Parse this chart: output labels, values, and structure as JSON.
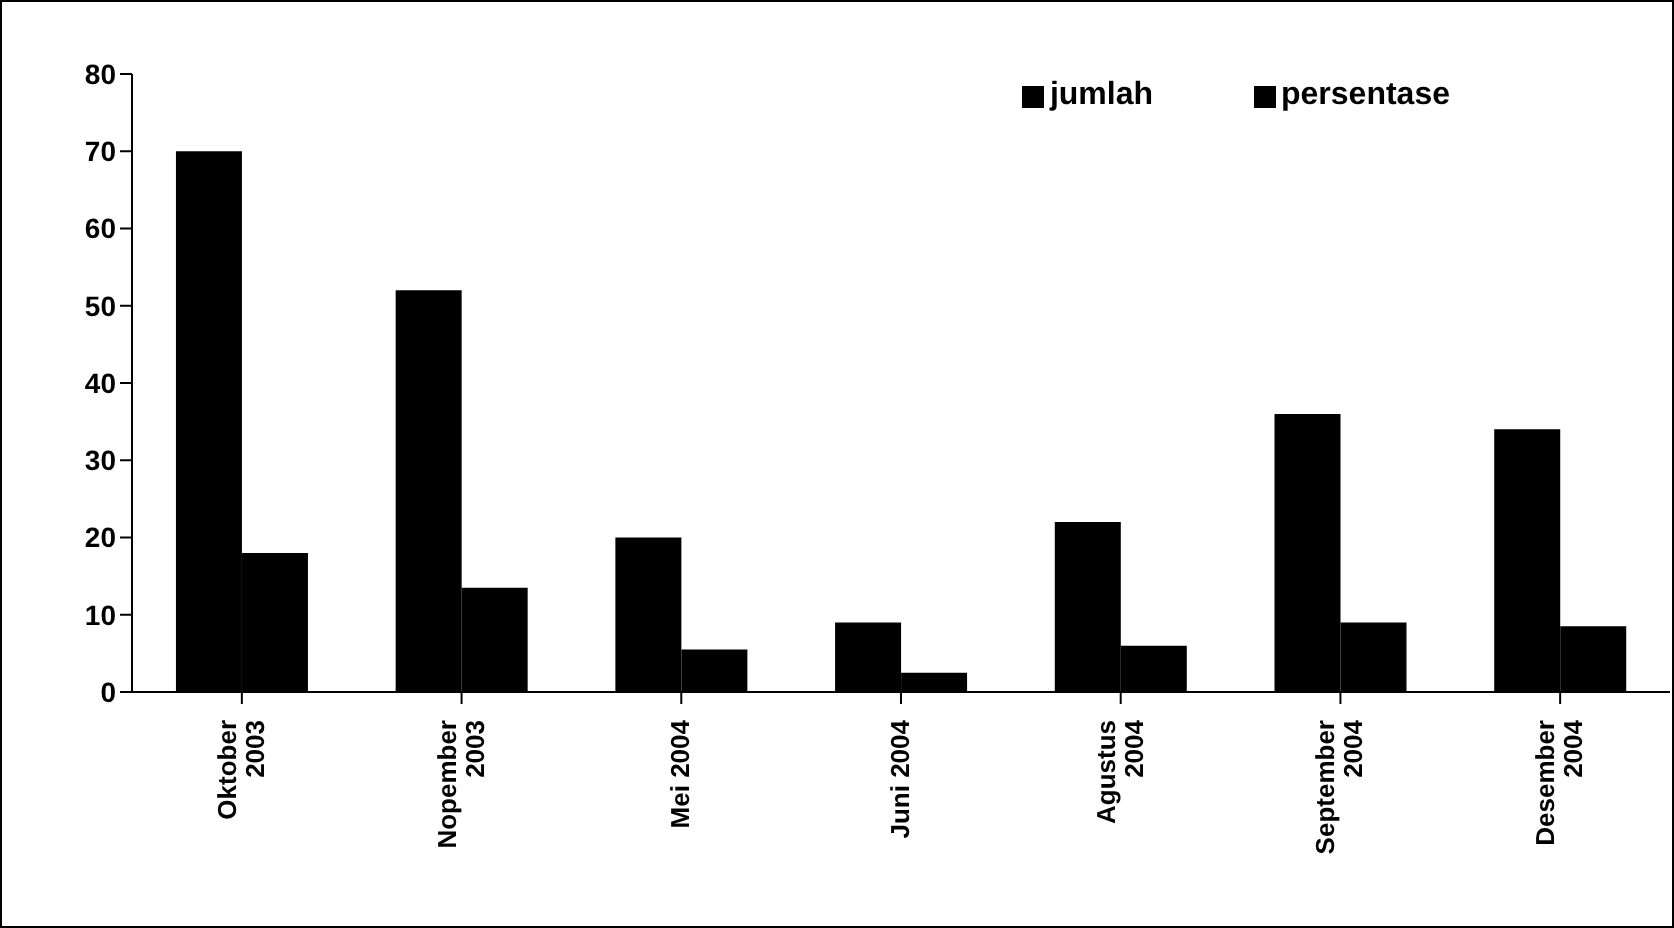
{
  "chart_data": {
    "type": "bar",
    "categories": [
      "Oktober 2003",
      "Nopember 2003",
      "Mei 2004",
      "Juni 2004",
      "Agustus 2004",
      "September 2004",
      "Desember 2004"
    ],
    "series": [
      {
        "name": "jumlah",
        "color": "#000000",
        "values": [
          70,
          52,
          20,
          9,
          22,
          36,
          34
        ]
      },
      {
        "name": "persentase",
        "color": "#000000",
        "values": [
          18,
          13.5,
          5.5,
          2.5,
          6,
          9,
          8.5
        ]
      }
    ],
    "ylim": [
      0,
      80
    ],
    "yticks": [
      0,
      10,
      20,
      30,
      40,
      50,
      60,
      70,
      80
    ],
    "grid": false,
    "legend": "top right"
  }
}
